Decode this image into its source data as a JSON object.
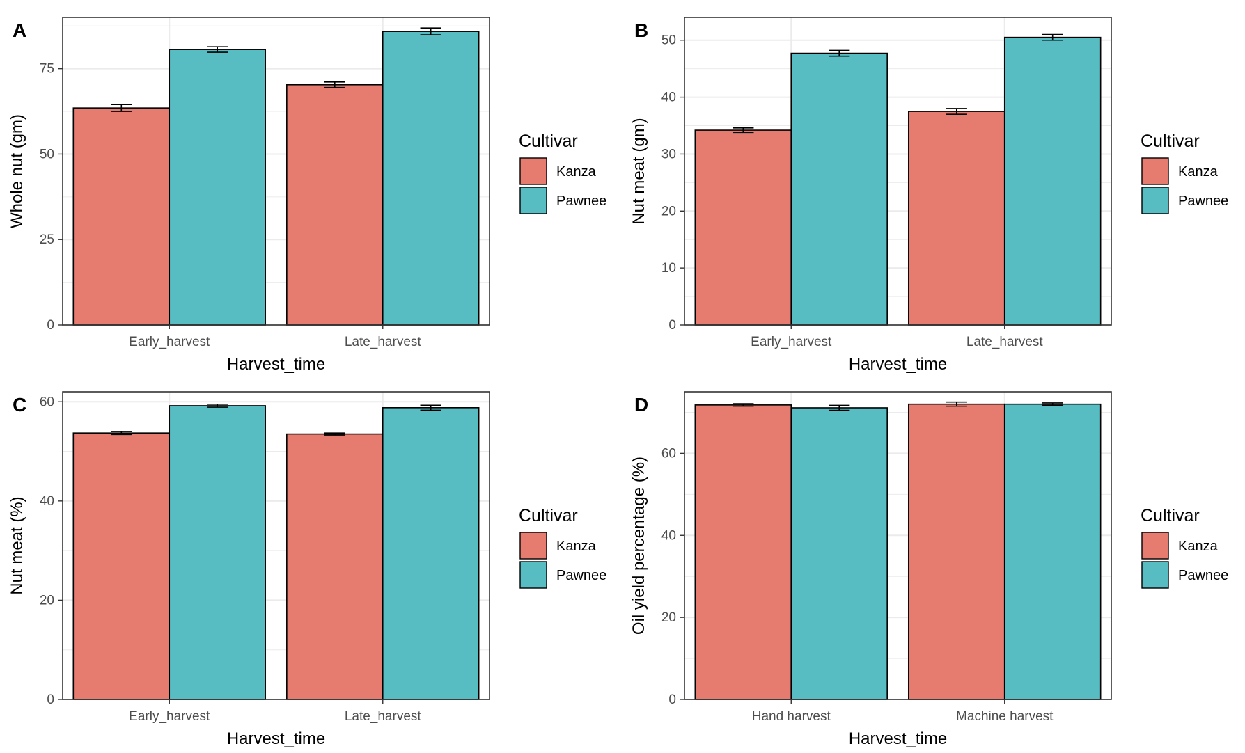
{
  "colors": {
    "Kanza": "#E67B70",
    "Pawnee": "#57BDC2",
    "grid": "#ebebeb",
    "border": "#333333"
  },
  "chart_data": [
    {
      "panel": "A",
      "type": "bar",
      "xlabel": "Harvest_time",
      "ylabel": "Whole nut (gm)",
      "categories": [
        "Early_harvest",
        "Late_harvest"
      ],
      "ylim": [
        0,
        90
      ],
      "yticks": [
        0,
        25,
        50,
        75
      ],
      "legend_title": "Cultivar",
      "series": [
        {
          "name": "Kanza",
          "values": [
            63.5,
            70.3
          ],
          "errors": [
            1.0,
            0.8
          ]
        },
        {
          "name": "Pawnee",
          "values": [
            80.6,
            85.9
          ],
          "errors": [
            0.8,
            1.0
          ]
        }
      ]
    },
    {
      "panel": "B",
      "type": "bar",
      "xlabel": "Harvest_time",
      "ylabel": "Nut meat (gm)",
      "categories": [
        "Early_harvest",
        "Late_harvest"
      ],
      "ylim": [
        0,
        54
      ],
      "yticks": [
        0,
        10,
        20,
        30,
        40,
        50
      ],
      "legend_title": "Cultivar",
      "series": [
        {
          "name": "Kanza",
          "values": [
            34.2,
            37.5
          ],
          "errors": [
            0.4,
            0.5
          ]
        },
        {
          "name": "Pawnee",
          "values": [
            47.7,
            50.5
          ],
          "errors": [
            0.5,
            0.5
          ]
        }
      ]
    },
    {
      "panel": "C",
      "type": "bar",
      "xlabel": "Harvest_time",
      "ylabel": "Nut meat (%)",
      "categories": [
        "Early_harvest",
        "Late_harvest"
      ],
      "ylim": [
        0,
        62
      ],
      "yticks": [
        0,
        20,
        40,
        60
      ],
      "legend_title": "Cultivar",
      "series": [
        {
          "name": "Kanza",
          "values": [
            53.7,
            53.5
          ],
          "errors": [
            0.3,
            0.2
          ]
        },
        {
          "name": "Pawnee",
          "values": [
            59.2,
            58.8
          ],
          "errors": [
            0.3,
            0.5
          ]
        }
      ]
    },
    {
      "panel": "D",
      "type": "bar",
      "xlabel": "Harvest_time",
      "ylabel": "Oil yield percentage (%)",
      "categories": [
        "Hand harvest",
        "Machine harvest"
      ],
      "ylim": [
        0,
        75
      ],
      "yticks": [
        0,
        20,
        40,
        60
      ],
      "legend_title": "Cultivar",
      "series": [
        {
          "name": "Kanza",
          "values": [
            71.8,
            72.0
          ],
          "errors": [
            0.3,
            0.5
          ]
        },
        {
          "name": "Pawnee",
          "values": [
            71.1,
            72.0
          ],
          "errors": [
            0.6,
            0.3
          ]
        }
      ]
    }
  ]
}
